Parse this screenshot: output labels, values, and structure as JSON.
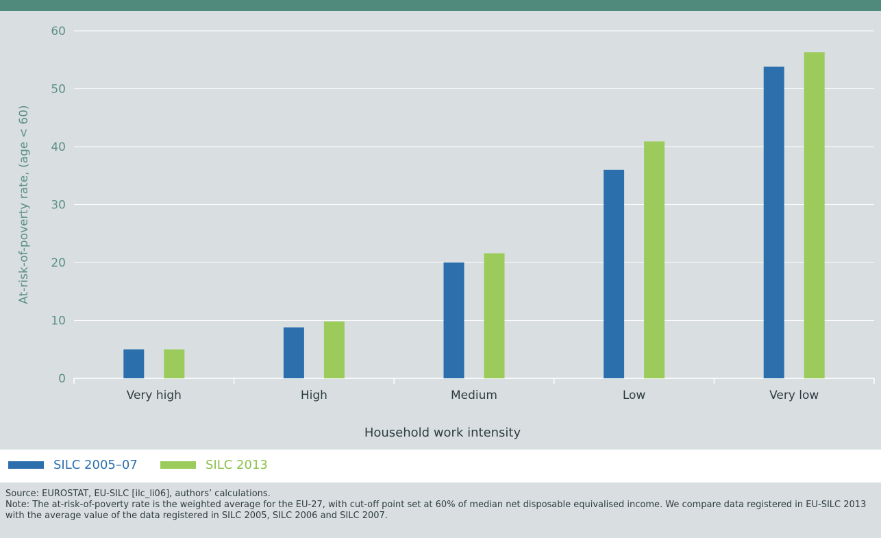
{
  "colors": {
    "accent_bar": "#4f8a7c",
    "panel": "#d9dfe1",
    "axis_text": "#5d8f86",
    "grid": "#ffffff",
    "series_1": "#2b6fad",
    "series_2": "#9ccb5c"
  },
  "chart_data": {
    "type": "bar",
    "categories": [
      "Very high",
      "High",
      "Medium",
      "Low",
      "Very low"
    ],
    "series": [
      {
        "name": "SILC 2005–07",
        "color": "#2b6fad",
        "values": [
          5.0,
          8.8,
          20.0,
          36.0,
          53.8
        ]
      },
      {
        "name": "SILC 2013",
        "color": "#9ccb5c",
        "values": [
          5.0,
          9.8,
          21.6,
          40.9,
          56.3
        ]
      }
    ],
    "ylim": [
      0,
      60
    ],
    "yticks": [
      "0",
      "10",
      "20",
      "30",
      "40",
      "50",
      "60"
    ],
    "ylabel": "At-risk-of-poverty rate, (age < 60)",
    "xlabel": "Household work intensity",
    "grid": true,
    "legend_position": "bottom-left"
  },
  "source": {
    "line1": "Source: EUROSTAT, EU-SILC [ilc_li06], authors’ calculations.",
    "line2": "Note: The at-risk-of-poverty rate is the weighted average for the EU-27, with cut-off point set at 60% of median net disposable equivalised income. We compare data registered in EU-SILC 2013 with the average value of the data registered in SILC 2005, SILC 2006 and SILC 2007."
  }
}
